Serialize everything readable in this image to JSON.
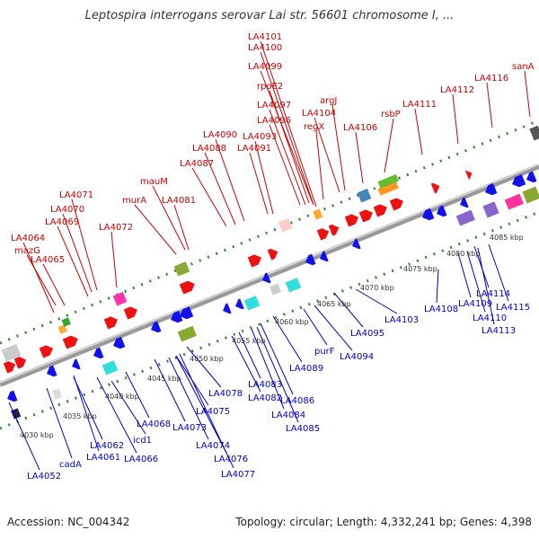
{
  "title": "Leptospira interrogans serovar Lai str. 56601 chromosome I, ...",
  "footer": {
    "accession": "Accession: NC_004342",
    "summary": "Topology: circular; Length: 4,332,241 bp; Genes: 4,398"
  },
  "colors": {
    "forward_label": "#cc0000",
    "reverse_label": "#0000cc",
    "backbone": "#999999",
    "tick_dots": "#2e8b2e"
  },
  "scale_labels": [
    "4030 kbp",
    "4035 kbp",
    "4040 kbp",
    "4045 kbp",
    "4050 kbp",
    "4055 kbp",
    "4060 kbp",
    "4065 kbp",
    "4070 kbp",
    "4075 kbp",
    "4080 kbp",
    "4085 kbp"
  ],
  "forward_labels": [
    "LA4064",
    "mazG",
    "LA4065",
    "LA4071",
    "LA4070",
    "LA4069",
    "LA4072",
    "murA",
    "mauM",
    "LA4081",
    "LA4087",
    "LA4088",
    "LA4090",
    "LA4093",
    "LA4091",
    "LA4101",
    "LA4100",
    "LA4099",
    "rpoE2",
    "LA4097",
    "LA4096",
    "regX",
    "argJ",
    "LA4104",
    "LA4106",
    "rsbP",
    "LA4111",
    "LA4112",
    "LA4116",
    "sanA"
  ],
  "reverse_labels": [
    "LA4052",
    "cadA",
    "LA4061",
    "LA4062",
    "icd1",
    "LA4066",
    "LA4068",
    "LA4073",
    "LA4074",
    "LA4075",
    "LA4076",
    "LA4077",
    "LA4078",
    "LA4082",
    "LA4083",
    "LA4084",
    "LA4085",
    "LA4086",
    "LA4089",
    "purF",
    "LA4094",
    "LA4095",
    "LA4103",
    "LA4108",
    "LA4109",
    "LA4110",
    "LA4113",
    "LA4114",
    "LA4115"
  ]
}
